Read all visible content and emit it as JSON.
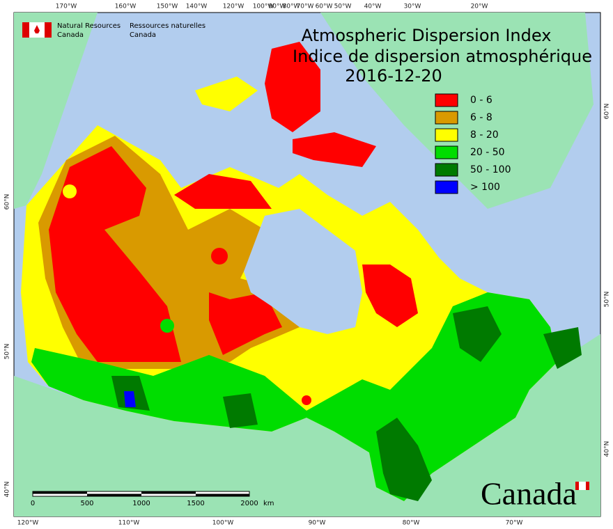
{
  "header": {
    "agency_en": [
      "Natural Resources",
      "Canada"
    ],
    "agency_fr": [
      "Ressources naturelles",
      "Canada"
    ]
  },
  "title": {
    "en": "Atmospheric Dispersion Index",
    "fr": "Indice de dispersion atmosphérique",
    "date": "2016-12-20"
  },
  "legend": [
    {
      "label": "0 - 6",
      "color": "#ff0000"
    },
    {
      "label": "6 - 8",
      "color": "#d99a00"
    },
    {
      "label": "8 - 20",
      "color": "#ffff00"
    },
    {
      "label": "20 - 50",
      "color": "#00dd00"
    },
    {
      "label": "50 - 100",
      "color": "#007a00"
    },
    {
      "label": "> 100",
      "color": "#0000ff"
    }
  ],
  "graticule": {
    "top": [
      "170°W",
      "160°W",
      "150°W",
      "140°W",
      "120°W",
      "100°W",
      "90°W",
      "80°W",
      "70°W",
      "60°W",
      "50°W",
      "40°W",
      "30°W",
      "20°W"
    ],
    "bottom": [
      "120°W",
      "110°W",
      "100°W",
      "90°W",
      "80°W",
      "70°W"
    ],
    "left": [
      "60°N",
      "50°N",
      "40°N"
    ],
    "right": [
      "60°N",
      "50°N",
      "40°N"
    ]
  },
  "scale_bar": {
    "ticks": [
      "0",
      "500",
      "1000",
      "1500",
      "2000"
    ],
    "unit": "km"
  },
  "wordmark": "Canada"
}
